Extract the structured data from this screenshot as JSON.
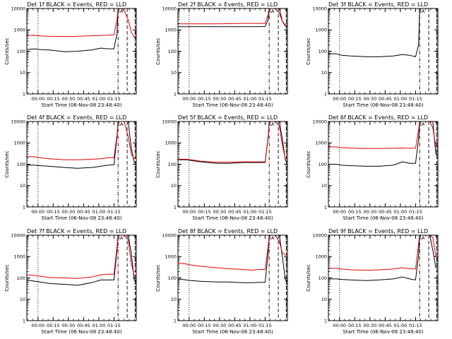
{
  "colors": {
    "events": "#000000",
    "lld": "#e00000",
    "axis": "#000000"
  },
  "chart_data": [
    {
      "type": "line",
      "title": "Det 1f BLACK = Events, RED = LLD",
      "xlabel": "Start Time (06-Nov-08 23:48:40)",
      "ylabel": "Counts/sec",
      "yscale": "log",
      "ylim": [
        1,
        10000
      ],
      "yticks": [
        "1",
        "10",
        "100",
        "1000",
        "10000"
      ],
      "xticks": [
        "00:00",
        "00:15",
        "00:30",
        "00:45",
        "01:00",
        "01:15"
      ],
      "flare_label": "SA",
      "x": [
        0,
        8,
        13,
        22,
        38,
        50,
        64,
        73,
        80,
        86,
        89,
        90,
        93,
        96,
        100,
        103,
        106,
        108
      ],
      "series": [
        {
          "name": "Events",
          "color": "#000000",
          "values": [
            120,
            130,
            120,
            115,
            95,
            100,
            115,
            140,
            130,
            130,
            700,
            10000,
            10000,
            10000,
            10000,
            null,
            100,
            100
          ]
        },
        {
          "name": "LLD",
          "color": "#e00000",
          "values": [
            550,
            560,
            520,
            500,
            490,
            500,
            530,
            550,
            560,
            580,
            3000,
            10000,
            10000,
            8000,
            3000,
            800,
            450,
            450
          ]
        }
      ],
      "vlines": [
        {
          "x": 11,
          "style": "dotted"
        },
        {
          "x": 90,
          "style": "dashdot"
        },
        {
          "x": 99,
          "style": "dashed"
        },
        {
          "x": 107,
          "style": "dashed"
        }
      ]
    },
    {
      "type": "line",
      "title": "Det 2f BLACK = Events, RED = LLD",
      "xlabel": "Start Time (06-Nov-08 23:48:40)",
      "ylabel": "Counts/sec",
      "yscale": "log",
      "ylim": [
        1,
        10000
      ],
      "yticks": [
        "1",
        "10",
        "100",
        "1000",
        "10000"
      ],
      "xticks": [
        "00:00",
        "00:15",
        "00:30",
        "00:45",
        "01:00",
        "01:15"
      ],
      "flare_label": "SA",
      "x": [
        0,
        8,
        13,
        22,
        38,
        50,
        64,
        73,
        80,
        86,
        89,
        90,
        93,
        96,
        100,
        103,
        106,
        108
      ],
      "series": [
        {
          "name": "Events",
          "color": "#000000",
          "values": [
            1400,
            1400,
            1400,
            1400,
            1400,
            1400,
            1400,
            1400,
            1400,
            1450,
            3000,
            10000,
            10000,
            10000,
            10000,
            2500,
            1500,
            1400
          ]
        },
        {
          "name": "LLD",
          "color": "#e00000",
          "values": [
            1900,
            1900,
            1900,
            1900,
            1900,
            1950,
            2000,
            2000,
            2000,
            2000,
            5000,
            10000,
            10000,
            10000,
            6000,
            2500,
            1700,
            1700
          ]
        }
      ],
      "vlines": [
        {
          "x": 11,
          "style": "dotted"
        },
        {
          "x": 90,
          "style": "dashdot"
        },
        {
          "x": 99,
          "style": "dashed"
        },
        {
          "x": 107,
          "style": "dashed"
        }
      ]
    },
    {
      "type": "line",
      "title": "Det 3f BLACK = Events, RED = LLD",
      "xlabel": "Start Time (06-Nov-08 23:48:40)",
      "ylabel": "Counts/sec",
      "yscale": "log",
      "ylim": [
        1,
        10000
      ],
      "yticks": [
        "1",
        "10",
        "100",
        "1000",
        "10000"
      ],
      "xticks": [
        "00:00",
        "00:15",
        "00:30",
        "00:45",
        "01:00",
        "01:15"
      ],
      "flare_label": "SA",
      "x": [
        0,
        8,
        13,
        22,
        38,
        50,
        64,
        73,
        80,
        86,
        89,
        90,
        93,
        96,
        100,
        103,
        106,
        108
      ],
      "series": [
        {
          "name": "Events",
          "color": "#000000",
          "values": [
            75,
            75,
            65,
            60,
            55,
            55,
            60,
            70,
            65,
            55,
            200,
            10000,
            10000,
            10000,
            10000,
            10000,
            10000,
            10000
          ]
        },
        {
          "name": "LLD",
          "color": "#e00000",
          "values": [
            10000,
            10000,
            10000,
            10000,
            10000,
            10000,
            10000,
            10000,
            10000,
            10000,
            10000,
            10000,
            10000,
            10000,
            10000,
            10000,
            10000,
            10000
          ]
        }
      ],
      "vlines": [
        {
          "x": 11,
          "style": "dotted"
        },
        {
          "x": 90,
          "style": "dashdot"
        },
        {
          "x": 99,
          "style": "dashed"
        },
        {
          "x": 107,
          "style": "dashed"
        }
      ]
    },
    {
      "type": "line",
      "title": "Det 4f BLACK = Events, RED = LLD",
      "xlabel": "Start Time (06-Nov-08 23:48:40)",
      "ylabel": "Counts/sec",
      "yscale": "log",
      "ylim": [
        1,
        10000
      ],
      "yticks": [
        "1",
        "10",
        "100",
        "1000",
        "10000"
      ],
      "xticks": [
        "00:00",
        "00:15",
        "00:30",
        "00:45",
        "01:00",
        "01:15"
      ],
      "flare_label": "SA",
      "x": [
        0,
        8,
        13,
        22,
        38,
        50,
        64,
        73,
        80,
        86,
        89,
        90,
        93,
        96,
        100,
        103,
        106,
        108
      ],
      "series": [
        {
          "name": "Events",
          "color": "#000000",
          "values": [
            90,
            90,
            85,
            80,
            70,
            65,
            70,
            80,
            90,
            95,
            2000,
            10000,
            10000,
            10000,
            10000,
            600,
            120,
            120
          ]
        },
        {
          "name": "LLD",
          "color": "#e00000",
          "values": [
            230,
            220,
            200,
            180,
            160,
            160,
            170,
            180,
            200,
            200,
            2500,
            10000,
            10000,
            10000,
            2000,
            300,
            180,
            200
          ]
        }
      ],
      "vlines": [
        {
          "x": 11,
          "style": "dotted"
        },
        {
          "x": 90,
          "style": "dashdot"
        },
        {
          "x": 99,
          "style": "dashed"
        },
        {
          "x": 107,
          "style": "dashed"
        }
      ]
    },
    {
      "type": "line",
      "title": "Det 5f BLACK = Events, RED = LLD",
      "xlabel": "Start Time (06-Nov-08 23:48:40)",
      "ylabel": "Counts/sec",
      "yscale": "log",
      "ylim": [
        1,
        10000
      ],
      "yticks": [
        "1",
        "10",
        "100",
        "1000",
        "10000"
      ],
      "xticks": [
        "00:00",
        "00:15",
        "00:30",
        "00:45",
        "01:00",
        "01:15"
      ],
      "flare_label": "SA",
      "x": [
        0,
        8,
        13,
        22,
        38,
        50,
        64,
        73,
        80,
        86,
        89,
        90,
        93,
        96,
        100,
        103,
        106,
        108
      ],
      "series": [
        {
          "name": "Events",
          "color": "#000000",
          "values": [
            160,
            160,
            150,
            130,
            110,
            110,
            120,
            120,
            120,
            120,
            1800,
            10000,
            10000,
            10000,
            10000,
            1500,
            150,
            120
          ]
        },
        {
          "name": "LLD",
          "color": "#e00000",
          "values": [
            170,
            170,
            160,
            140,
            125,
            125,
            130,
            130,
            130,
            130,
            2000,
            10000,
            10000,
            10000,
            6000,
            800,
            170,
            150
          ]
        }
      ],
      "vlines": [
        {
          "x": 11,
          "style": "dotted"
        },
        {
          "x": 90,
          "style": "dashdot"
        },
        {
          "x": 99,
          "style": "dashed"
        },
        {
          "x": 107,
          "style": "dashed"
        }
      ]
    },
    {
      "type": "line",
      "title": "Det 6f BLACK = Events, RED = LLD",
      "xlabel": "Start Time (06-Nov-08 23:48:40)",
      "ylabel": "Counts/sec",
      "yscale": "log",
      "ylim": [
        1,
        10000
      ],
      "yticks": [
        "1",
        "10",
        "100",
        "1000",
        "10000"
      ],
      "xticks": [
        "00:00",
        "00:15",
        "00:30",
        "00:45",
        "01:00",
        "01:15"
      ],
      "flare_label": "SA",
      "x": [
        0,
        8,
        13,
        22,
        38,
        50,
        64,
        73,
        80,
        86,
        89,
        90,
        93,
        96,
        100,
        103,
        106,
        108
      ],
      "series": [
        {
          "name": "Events",
          "color": "#000000",
          "values": [
            100,
            100,
            90,
            85,
            80,
            80,
            90,
            130,
            110,
            110,
            1500,
            10000,
            10000,
            10000,
            10000,
            10000,
            300,
            250
          ]
        },
        {
          "name": "LLD",
          "color": "#e00000",
          "values": [
            650,
            640,
            600,
            570,
            540,
            540,
            560,
            570,
            560,
            560,
            4000,
            10000,
            10000,
            10000,
            10000,
            5000,
            700,
            650
          ]
        }
      ],
      "vlines": [
        {
          "x": 11,
          "style": "dotted"
        },
        {
          "x": 90,
          "style": "dashdot"
        },
        {
          "x": 99,
          "style": "dashed"
        },
        {
          "x": 107,
          "style": "dashed"
        }
      ]
    },
    {
      "type": "line",
      "title": "Det 7f BLACK = Events, RED = LLD",
      "xlabel": "Start Time (06-Nov-08 23:48:40)",
      "ylabel": "Counts/sec",
      "yscale": "log",
      "ylim": [
        1,
        10000
      ],
      "yticks": [
        "1",
        "10",
        "100",
        "1000",
        "10000"
      ],
      "xticks": [
        "00:00",
        "00:15",
        "00:30",
        "00:45",
        "01:00",
        "01:15"
      ],
      "flare_label": "SA",
      "x": [
        0,
        8,
        13,
        22,
        38,
        50,
        64,
        73,
        80,
        86,
        89,
        90,
        93,
        96,
        100,
        103,
        106,
        108
      ],
      "series": [
        {
          "name": "Events",
          "color": "#000000",
          "values": [
            80,
            70,
            65,
            55,
            50,
            45,
            60,
            80,
            80,
            80,
            2000,
            10000,
            10000,
            10000,
            10000,
            1500,
            80,
            70
          ]
        },
        {
          "name": "LLD",
          "color": "#e00000",
          "values": [
            140,
            130,
            120,
            105,
            100,
            95,
            110,
            140,
            150,
            150,
            3000,
            10000,
            10000,
            10000,
            6000,
            500,
            130,
            120
          ]
        }
      ],
      "vlines": [
        {
          "x": 11,
          "style": "dotted"
        },
        {
          "x": 90,
          "style": "dashdot"
        },
        {
          "x": 99,
          "style": "dashed"
        },
        {
          "x": 107,
          "style": "dashed"
        }
      ]
    },
    {
      "type": "line",
      "title": "Det 8f BLACK = Events, RED = LLD",
      "xlabel": "Start Time (06-Nov-08 23:48:40)",
      "ylabel": "Counts/sec",
      "yscale": "log",
      "ylim": [
        1,
        10000
      ],
      "yticks": [
        "1",
        "10",
        "100",
        "1000",
        "10000"
      ],
      "xticks": [
        "00:00",
        "00:15",
        "00:30",
        "00:45",
        "01:00",
        "01:15"
      ],
      "flare_label": "SA",
      "x": [
        0,
        8,
        13,
        22,
        38,
        50,
        64,
        73,
        80,
        86,
        89,
        90,
        93,
        96,
        100,
        103,
        106,
        108
      ],
      "series": [
        {
          "name": "Events",
          "color": "#000000",
          "values": [
            90,
            80,
            75,
            70,
            65,
            65,
            60,
            60,
            62,
            62,
            1500,
            10000,
            10000,
            10000,
            10000,
            1000,
            80,
            70
          ]
        },
        {
          "name": "LLD",
          "color": "#e00000",
          "values": [
            500,
            450,
            400,
            350,
            300,
            270,
            250,
            230,
            250,
            250,
            3000,
            10000,
            10000,
            10000,
            5000,
            1500,
            1200,
            1200
          ]
        }
      ],
      "vlines": [
        {
          "x": 11,
          "style": "dotted"
        },
        {
          "x": 90,
          "style": "dashdot"
        },
        {
          "x": 99,
          "style": "dashed"
        },
        {
          "x": 107,
          "style": "dashed"
        }
      ]
    },
    {
      "type": "line",
      "title": "Det 9f BLACK = Events, RED = LLD",
      "xlabel": "Start Time (06-Nov-08 23:48:40)",
      "ylabel": "Counts/sec",
      "yscale": "log",
      "ylim": [
        1,
        10000
      ],
      "yticks": [
        "1",
        "10",
        "100",
        "1000",
        "10000"
      ],
      "xticks": [
        "00:00",
        "00:15",
        "00:30",
        "00:45",
        "01:00",
        "01:15"
      ],
      "flare_label": "SA",
      "x": [
        0,
        8,
        13,
        22,
        38,
        50,
        64,
        73,
        80,
        86,
        89,
        90,
        93,
        96,
        100,
        103,
        106,
        108
      ],
      "series": [
        {
          "name": "Events",
          "color": "#000000",
          "values": [
            90,
            90,
            85,
            80,
            75,
            80,
            90,
            110,
            90,
            80,
            1200,
            10000,
            10000,
            10000,
            10000,
            2000,
            300,
            300
          ]
        },
        {
          "name": "LLD",
          "color": "#e00000",
          "values": [
            280,
            280,
            260,
            240,
            230,
            240,
            260,
            300,
            270,
            260,
            4000,
            10000,
            10000,
            10000,
            10000,
            8000,
            1000,
            1000
          ]
        }
      ],
      "vlines": [
        {
          "x": 11,
          "style": "dotted"
        },
        {
          "x": 90,
          "style": "dashdot"
        },
        {
          "x": 99,
          "style": "dashed"
        },
        {
          "x": 107,
          "style": "dashed"
        }
      ]
    }
  ]
}
